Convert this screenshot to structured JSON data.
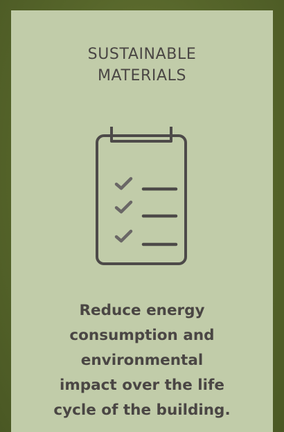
{
  "card": {
    "title": "SUSTAINABLE\nMATERIALS",
    "icon": "clipboard-checklist-icon",
    "description": "Reduce energy\nconsumption and\nenvironmental\nimpact over the life\ncycle of the building.",
    "colors": {
      "background_outer": "#56652a",
      "card_background": "#c1cca9",
      "text": "#4a4644",
      "icon_stroke": "#4d4a49",
      "icon_check": "#6a6766"
    }
  }
}
